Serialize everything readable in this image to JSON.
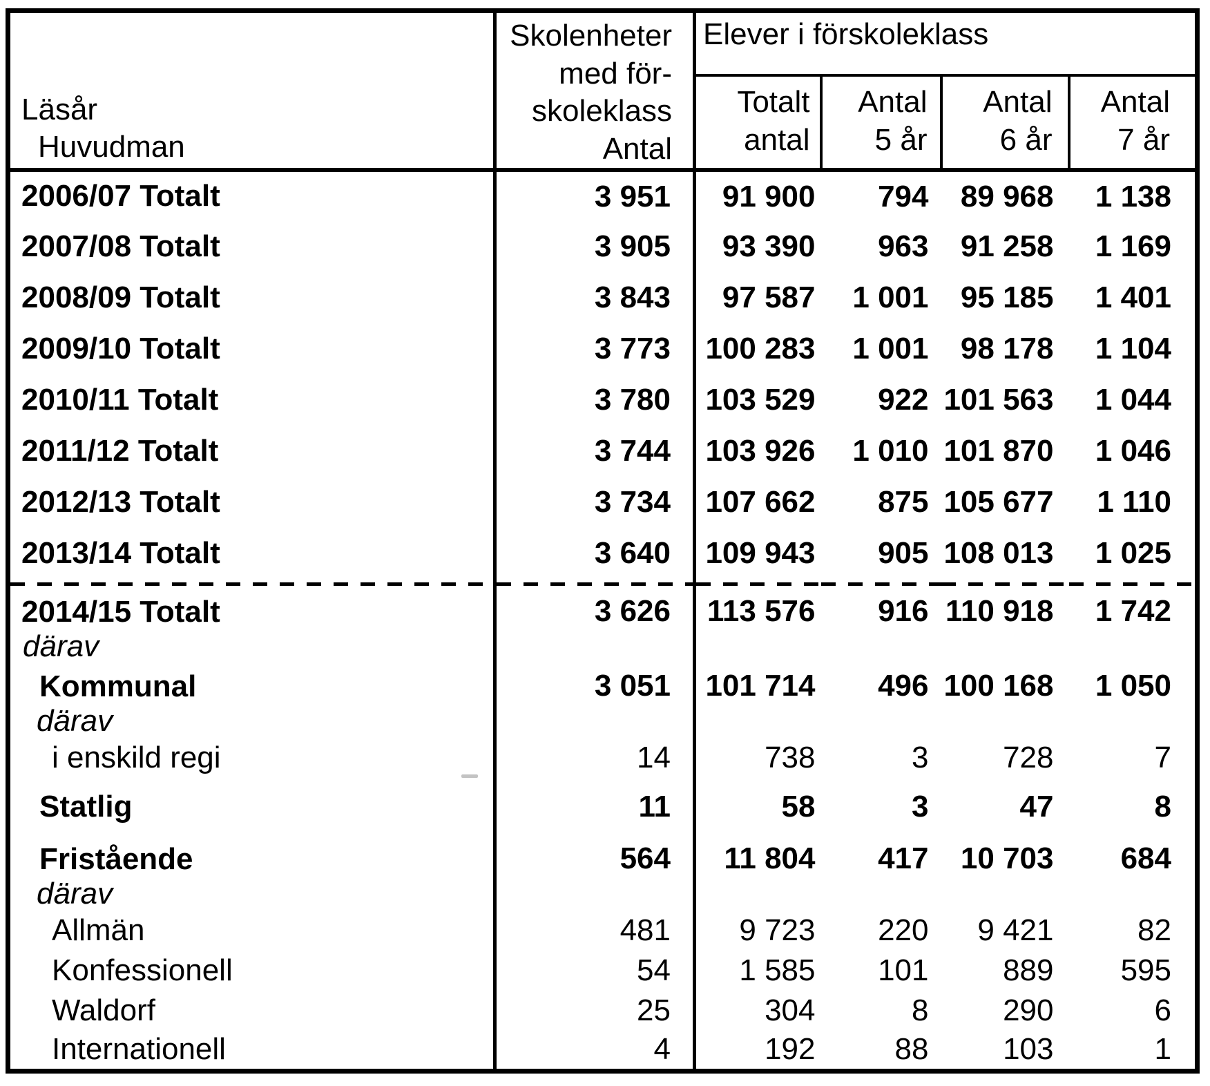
{
  "header": {
    "row_label_lines": [
      "Läsår",
      "Huvudman"
    ],
    "col_skolenheter_lines": [
      "Skolenheter",
      "med för-",
      "skoleklass",
      "Antal"
    ],
    "group_label": "Elever i förskoleklass",
    "subcolumns": [
      {
        "l1": "Totalt",
        "l2": "antal"
      },
      {
        "l1": "Antal",
        "l2": "5 år"
      },
      {
        "l1": "Antal",
        "l2": "6 år"
      },
      {
        "l1": "Antal",
        "l2": "7 år"
      }
    ]
  },
  "rows": [
    {
      "type": "data",
      "label": "2006/07 Totalt",
      "sublabel": "",
      "indent": 0,
      "bold": true,
      "values": [
        "3 951",
        "91 900",
        "794",
        "89 968",
        "1 138"
      ]
    },
    {
      "type": "data",
      "label": "2007/08 Totalt",
      "sublabel": "",
      "indent": 0,
      "bold": true,
      "values": [
        "3 905",
        "93 390",
        "963",
        "91 258",
        "1 169"
      ]
    },
    {
      "type": "data",
      "label": "2008/09 Totalt",
      "sublabel": "",
      "indent": 0,
      "bold": true,
      "values": [
        "3 843",
        "97 587",
        "1 001",
        "95 185",
        "1 401"
      ]
    },
    {
      "type": "data",
      "label": "2009/10 Totalt",
      "sublabel": "",
      "indent": 0,
      "bold": true,
      "values": [
        "3 773",
        "100 283",
        "1 001",
        "98 178",
        "1 104"
      ]
    },
    {
      "type": "data",
      "label": "2010/11 Totalt",
      "sublabel": "",
      "indent": 0,
      "bold": true,
      "values": [
        "3 780",
        "103 529",
        "922",
        "101 563",
        "1 044"
      ]
    },
    {
      "type": "data",
      "label": "2011/12 Totalt",
      "sublabel": "",
      "indent": 0,
      "bold": true,
      "values": [
        "3 744",
        "103 926",
        "1 010",
        "101 870",
        "1 046"
      ]
    },
    {
      "type": "data",
      "label": "2012/13 Totalt",
      "sublabel": "",
      "indent": 0,
      "bold": true,
      "values": [
        "3 734",
        "107 662",
        "875",
        "105 677",
        "1 110"
      ]
    },
    {
      "type": "data",
      "label": "2013/14 Totalt",
      "sublabel": "",
      "indent": 0,
      "bold": true,
      "values": [
        "3 640",
        "109 943",
        "905",
        "108 013",
        "1 025"
      ]
    },
    {
      "type": "separator"
    },
    {
      "type": "data",
      "label": "2014/15 Totalt",
      "sublabel": "därav",
      "indent": 0,
      "bold": true,
      "values": [
        "3 626",
        "113 576",
        "916",
        "110 918",
        "1 742"
      ]
    },
    {
      "type": "data",
      "label": "Kommunal",
      "sublabel": "därav",
      "indent": 1,
      "bold": true,
      "values": [
        "3 051",
        "101 714",
        "496",
        "100 168",
        "1 050"
      ]
    },
    {
      "type": "data",
      "label": "i enskild regi",
      "sublabel": "",
      "indent": 2,
      "bold": false,
      "values": [
        "14",
        "738",
        "3",
        "728",
        "7"
      ]
    },
    {
      "type": "data",
      "label": "Statlig",
      "sublabel": "",
      "indent": 1,
      "bold": true,
      "values": [
        "11",
        "58",
        "3",
        "47",
        "8"
      ]
    },
    {
      "type": "data",
      "label": "Fristående",
      "sublabel": "därav",
      "indent": 1,
      "bold": true,
      "values": [
        "564",
        "11 804",
        "417",
        "10 703",
        "684"
      ]
    },
    {
      "type": "data",
      "label": "Allmän",
      "sublabel": "",
      "indent": 2,
      "bold": false,
      "values": [
        "481",
        "9 723",
        "220",
        "9 421",
        "82"
      ]
    },
    {
      "type": "data",
      "label": "Konfessionell",
      "sublabel": "",
      "indent": 2,
      "bold": false,
      "values": [
        "54",
        "1 585",
        "101",
        "889",
        "595"
      ]
    },
    {
      "type": "data",
      "label": "Waldorf",
      "sublabel": "",
      "indent": 2,
      "bold": false,
      "values": [
        "25",
        "304",
        "8",
        "290",
        "6"
      ]
    },
    {
      "type": "data",
      "label": "Internationell",
      "sublabel": "",
      "indent": 2,
      "bold": false,
      "values": [
        "4",
        "192",
        "88",
        "103",
        "1"
      ]
    }
  ],
  "colors": {
    "text": "#000000",
    "border": "#000000",
    "background": "#ffffff"
  }
}
